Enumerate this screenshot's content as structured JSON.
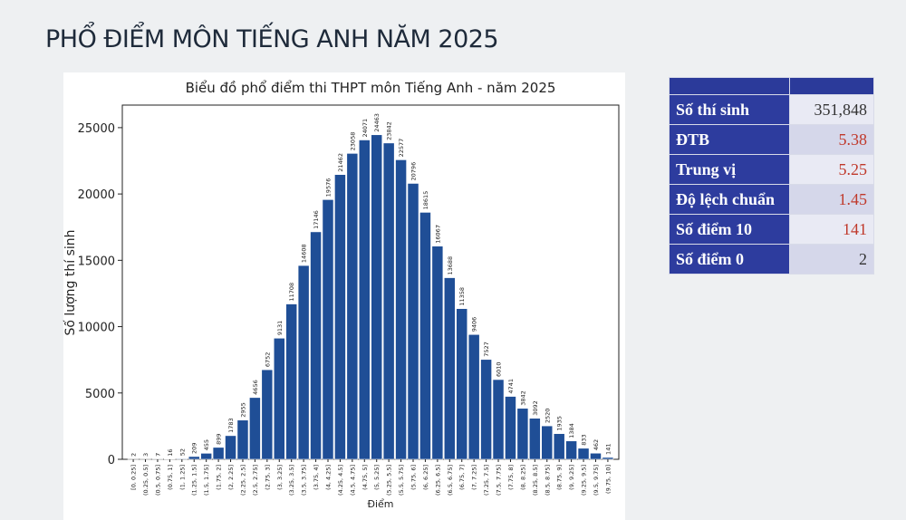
{
  "title": "PHỔ ĐIỂM MÔN TIẾNG ANH NĂM 2025",
  "chart_data": {
    "type": "bar",
    "title": "Biểu đồ phổ điểm thi THPT môn Tiếng Anh - năm 2025",
    "x_label": "Điểm",
    "y_label": "Số lượng thí sinh",
    "categories": [
      "[0, 0.25]",
      "(0.25, 0.5]",
      "(0.5, 0.75]",
      "(0.75, 1]",
      "(1, 1.25]",
      "(1.25, 1.5]",
      "(1.5, 1.75]",
      "(1.75, 2]",
      "(2, 2.25]",
      "(2.25, 2.5]",
      "(2.5, 2.75]",
      "(2.75, 3]",
      "(3, 3.25]",
      "(3.25, 3.5]",
      "(3.5, 3.75]",
      "(3.75, 4]",
      "(4, 4.25]",
      "(4.25, 4.5]",
      "(4.5, 4.75]",
      "(4.75, 5]",
      "(5, 5.25]",
      "(5.25, 5.5]",
      "(5.5, 5.75]",
      "(5.75, 6]",
      "(6, 6.25]",
      "(6.25, 6.5]",
      "(6.5, 6.75]",
      "(6.75, 7]",
      "(7, 7.25]",
      "(7.25, 7.5]",
      "(7.5, 7.75]",
      "(7.75, 8]",
      "(8, 8.25]",
      "(8.25, 8.5]",
      "(8.5, 8.75]",
      "(8.75, 9]",
      "(9, 9.25]",
      "(9.25, 9.5]",
      "(9.5, 9.75]",
      "(9.75, 10]"
    ],
    "values": [
      2,
      3,
      7,
      16,
      52,
      209,
      455,
      899,
      1783,
      2955,
      4656,
      6752,
      9131,
      11708,
      14608,
      17146,
      19576,
      21462,
      23058,
      24071,
      24463,
      23842,
      22577,
      20796,
      18615,
      16067,
      13688,
      11358,
      9406,
      7527,
      6010,
      4741,
      3842,
      3092,
      2520,
      1935,
      1384,
      833,
      462,
      141
    ],
    "color": "#1f4e96",
    "ylim": [
      0,
      26700
    ],
    "yticks": [
      0,
      5000,
      10000,
      15000,
      20000,
      25000
    ]
  },
  "table": {
    "rows": [
      [
        "Số thí sinh",
        "351,848"
      ],
      [
        "ĐTB",
        "5.38"
      ],
      [
        "Trung vị",
        "5.25"
      ],
      [
        "Độ lệch chuẩn",
        "1.45"
      ],
      [
        "Số điểm 10",
        "141"
      ],
      [
        "Số điểm 0",
        "2"
      ]
    ]
  }
}
